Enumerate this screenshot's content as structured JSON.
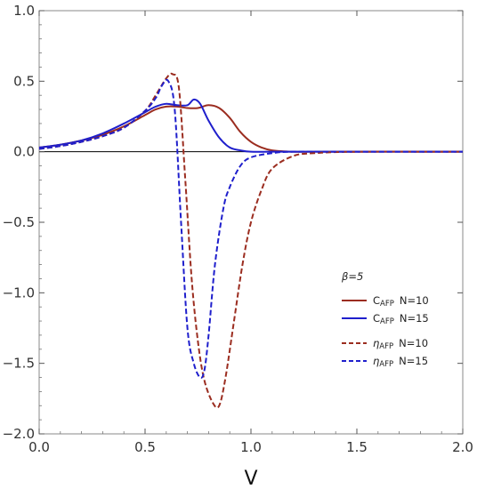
{
  "chart_data": {
    "type": "line",
    "title": "",
    "xlabel": "V",
    "ylabel": "",
    "xlim": [
      0,
      2
    ],
    "ylim": [
      -2,
      1
    ],
    "xticks": [
      "0.0",
      "0.5",
      "1.0",
      "1.5",
      "2.0"
    ],
    "yticks": [
      "-2.0",
      "-1.5",
      "-1.0",
      "-0.5",
      "0.0",
      "0.5",
      "1.0"
    ],
    "grid": false,
    "legend_position": "lower-right",
    "legend_title": "β=5",
    "series": [
      {
        "name": "C_AFP N=10",
        "label_main": "C",
        "label_sub": "AFP",
        "label_rest": "N=10",
        "color": "#9b2d20",
        "dash": "solid",
        "x": [
          0.0,
          0.1,
          0.2,
          0.3,
          0.4,
          0.5,
          0.55,
          0.6,
          0.65,
          0.7,
          0.75,
          0.8,
          0.85,
          0.9,
          0.95,
          1.0,
          1.05,
          1.1,
          1.2,
          1.3,
          1.5,
          2.0
        ],
        "y": [
          0.03,
          0.05,
          0.08,
          0.12,
          0.18,
          0.26,
          0.3,
          0.32,
          0.32,
          0.31,
          0.31,
          0.33,
          0.31,
          0.24,
          0.14,
          0.07,
          0.03,
          0.01,
          0.0,
          0.0,
          0.0,
          0.0
        ]
      },
      {
        "name": "C_AFP N=15",
        "label_main": "C",
        "label_sub": "AFP",
        "label_rest": "N=15",
        "color": "#1f1fcc",
        "dash": "solid",
        "x": [
          0.0,
          0.1,
          0.2,
          0.3,
          0.4,
          0.5,
          0.55,
          0.6,
          0.65,
          0.7,
          0.73,
          0.76,
          0.8,
          0.85,
          0.9,
          0.95,
          1.0,
          1.1,
          1.3,
          1.5,
          2.0
        ],
        "y": [
          0.03,
          0.05,
          0.08,
          0.13,
          0.2,
          0.28,
          0.32,
          0.34,
          0.33,
          0.33,
          0.37,
          0.34,
          0.22,
          0.1,
          0.03,
          0.01,
          0.0,
          0.0,
          0.0,
          0.0,
          0.0
        ]
      },
      {
        "name": "η_AFP N=10",
        "label_main": "η",
        "label_sub": "AFP",
        "label_rest": "N=10",
        "color": "#9b2d20",
        "dash": "dashed",
        "x": [
          0.0,
          0.1,
          0.2,
          0.3,
          0.4,
          0.5,
          0.55,
          0.6,
          0.63,
          0.66,
          0.69,
          0.72,
          0.75,
          0.78,
          0.82,
          0.85,
          0.88,
          0.92,
          0.96,
          1.0,
          1.05,
          1.1,
          1.2,
          1.3,
          1.5,
          2.0
        ],
        "y": [
          0.02,
          0.04,
          0.07,
          0.11,
          0.17,
          0.29,
          0.4,
          0.52,
          0.55,
          0.45,
          -0.2,
          -0.9,
          -1.35,
          -1.62,
          -1.78,
          -1.8,
          -1.6,
          -1.2,
          -0.8,
          -0.5,
          -0.27,
          -0.12,
          -0.03,
          -0.01,
          0.0,
          0.0
        ]
      },
      {
        "name": "η_AFP N=15",
        "label_main": "η",
        "label_sub": "AFP",
        "label_rest": "N=15",
        "color": "#1f1fcc",
        "dash": "dashed",
        "x": [
          0.0,
          0.1,
          0.2,
          0.3,
          0.4,
          0.5,
          0.55,
          0.58,
          0.61,
          0.64,
          0.67,
          0.7,
          0.73,
          0.76,
          0.78,
          0.8,
          0.83,
          0.87,
          0.9,
          0.95,
          1.0,
          1.1,
          1.2,
          1.5,
          2.0
        ],
        "y": [
          0.02,
          0.04,
          0.07,
          0.11,
          0.17,
          0.29,
          0.38,
          0.47,
          0.5,
          0.3,
          -0.5,
          -1.25,
          -1.5,
          -1.6,
          -1.55,
          -1.3,
          -0.8,
          -0.4,
          -0.25,
          -0.1,
          -0.04,
          -0.01,
          0.0,
          0.0,
          0.0
        ]
      }
    ]
  }
}
